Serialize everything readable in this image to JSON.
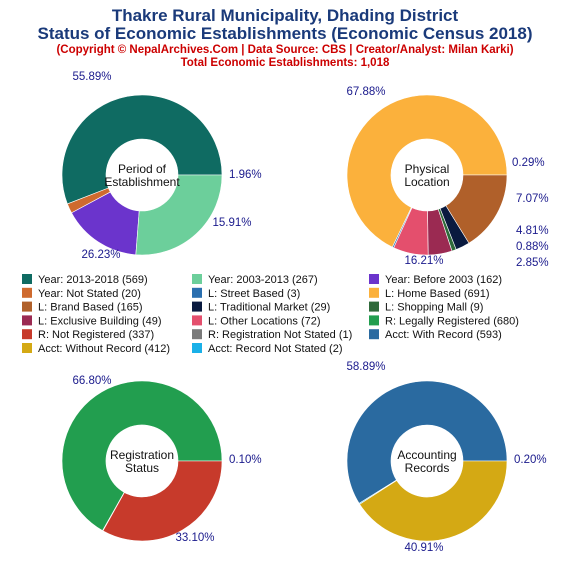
{
  "header": {
    "title_line1": "Thakre Rural Municipality, Dhading District",
    "title_line2": "Status of Economic Establishments (Economic Census 2018)",
    "subtitle_line1": "(Copyright © NepalArchives.Com | Data Source: CBS | Creator/Analyst: Milan Karki)",
    "subtitle_line2": "Total Economic Establishments: 1,018"
  },
  "colors": {
    "title": "#1a3a7a",
    "subtitle": "#cc0000",
    "pct_label": "#1a1a8c"
  },
  "legend": [
    {
      "label": "Year: 2013-2018 (569)",
      "color": "#0f6b62"
    },
    {
      "label": "Year: 2003-2013 (267)",
      "color": "#6ccf9b"
    },
    {
      "label": "Year: Before 2003 (162)",
      "color": "#6b34cc"
    },
    {
      "label": "Year: Not Stated (20)",
      "color": "#cf6a2e"
    },
    {
      "label": "L: Street Based (3)",
      "color": "#2a6faf"
    },
    {
      "label": "L: Home Based (691)",
      "color": "#fbb13c"
    },
    {
      "label": "L: Brand Based (165)",
      "color": "#b0602a"
    },
    {
      "label": "L: Traditional Market (29)",
      "color": "#0a1a3f"
    },
    {
      "label": "L: Shopping Mall (9)",
      "color": "#2f6a3a"
    },
    {
      "label": "L: Exclusive Building (49)",
      "color": "#9b2a52"
    },
    {
      "label": "L: Other Locations (72)",
      "color": "#e44f6d"
    },
    {
      "label": "R: Legally Registered (680)",
      "color": "#229e4f"
    },
    {
      "label": "R: Not Registered (337)",
      "color": "#c73a2b"
    },
    {
      "label": "R: Registration Not Stated (1)",
      "color": "#7a7a7a"
    },
    {
      "label": "Acct: With Record (593)",
      "color": "#2a6aa0"
    },
    {
      "label": "Acct: Without Record (412)",
      "color": "#d4a914"
    },
    {
      "label": "Acct: Record Not Stated (2)",
      "color": "#1ab0e8"
    }
  ],
  "chart_data": [
    {
      "type": "pie",
      "center_label": [
        "Period of",
        "Establishment"
      ],
      "slices": [
        {
          "name": "Year: 2013-2018",
          "value": 569,
          "percent": 55.89,
          "label": "55.89%",
          "color": "#0f6b62"
        },
        {
          "name": "Year: Not Stated",
          "value": 20,
          "percent": 1.96,
          "label": "1.96%",
          "color": "#cf6a2e"
        },
        {
          "name": "Year: Before 2003",
          "value": 162,
          "percent": 15.91,
          "label": "15.91%",
          "color": "#6b34cc"
        },
        {
          "name": "Year: 2003-2013",
          "value": 267,
          "percent": 26.23,
          "label": "26.23%",
          "color": "#6ccf9b"
        }
      ]
    },
    {
      "type": "pie",
      "center_label": [
        "Physical",
        "Location"
      ],
      "slices": [
        {
          "name": "L: Home Based",
          "value": 691,
          "percent": 67.88,
          "label": "67.88%",
          "color": "#fbb13c"
        },
        {
          "name": "L: Street Based",
          "value": 3,
          "percent": 0.29,
          "label": "0.29%",
          "color": "#2a6faf"
        },
        {
          "name": "L: Other Locations",
          "value": 72,
          "percent": 7.07,
          "label": "7.07%",
          "color": "#e44f6d"
        },
        {
          "name": "L: Exclusive Building",
          "value": 49,
          "percent": 4.81,
          "label": "4.81%",
          "color": "#9b2a52"
        },
        {
          "name": "L: Shopping Mall",
          "value": 9,
          "percent": 0.88,
          "label": "0.88%",
          "color": "#2f6a3a"
        },
        {
          "name": "L: Traditional Market",
          "value": 29,
          "percent": 2.85,
          "label": "2.85%",
          "color": "#0a1a3f"
        },
        {
          "name": "L: Brand Based",
          "value": 165,
          "percent": 16.21,
          "label": "16.21%",
          "color": "#b0602a"
        }
      ]
    },
    {
      "type": "pie",
      "center_label": [
        "Registration",
        "Status"
      ],
      "slices": [
        {
          "name": "R: Legally Registered",
          "value": 680,
          "percent": 66.8,
          "label": "66.80%",
          "color": "#229e4f"
        },
        {
          "name": "R: Registration Not Stated",
          "value": 1,
          "percent": 0.1,
          "label": "0.10%",
          "color": "#7a7a7a"
        },
        {
          "name": "R: Not Registered",
          "value": 337,
          "percent": 33.1,
          "label": "33.10%",
          "color": "#c73a2b"
        }
      ]
    },
    {
      "type": "pie",
      "center_label": [
        "Accounting",
        "Records"
      ],
      "slices": [
        {
          "name": "Acct: With Record",
          "value": 593,
          "percent": 58.89,
          "label": "58.89%",
          "color": "#2a6aa0"
        },
        {
          "name": "Acct: Record Not Stated",
          "value": 2,
          "percent": 0.2,
          "label": "0.20%",
          "color": "#1ab0e8"
        },
        {
          "name": "Acct: Without Record",
          "value": 412,
          "percent": 40.91,
          "label": "40.91%",
          "color": "#d4a914"
        }
      ]
    }
  ]
}
